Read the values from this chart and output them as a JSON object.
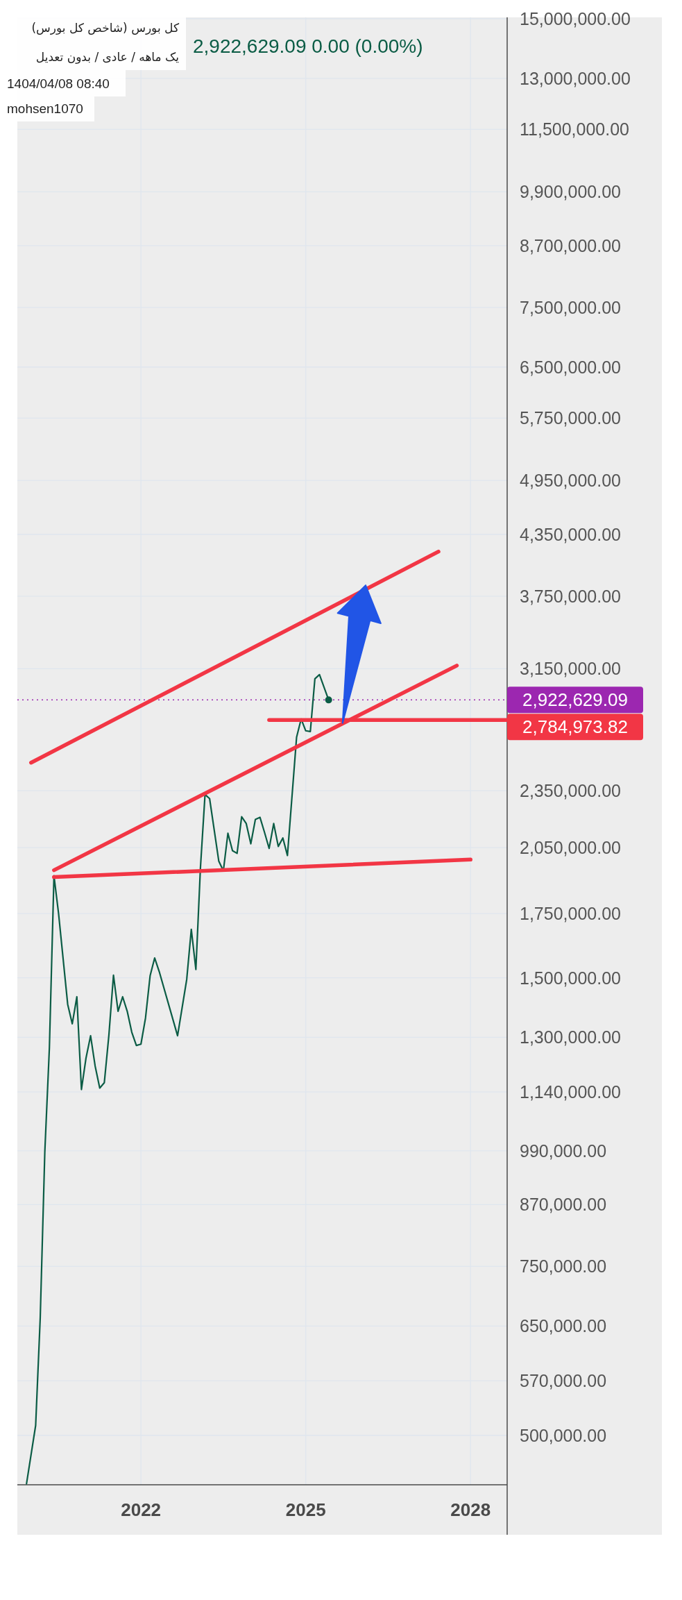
{
  "chart_data": {
    "type": "line",
    "title": "کل بورس (شاخص کل بورس)",
    "subtitle": "یک ماهه / عادی / بدون تعدیل",
    "annotations": [
      "2,922,629.09  0.00 (0.00%)",
      "1404/04/08 08:40",
      "mohsen1070"
    ],
    "log": true,
    "grid": true,
    "xlim": [
      "2019-10",
      "2028-09"
    ],
    "xticks": [
      "2022",
      "2025",
      "2028"
    ],
    "ylim": [
      444000,
      15050000
    ],
    "yticks": [
      {
        "value": 15000000,
        "label": "15,000,000.00"
      },
      {
        "value": 13000000,
        "label": "13,000,000.00"
      },
      {
        "value": 11500000,
        "label": "11,500,000.00"
      },
      {
        "value": 9900000,
        "label": "9,900,000.00"
      },
      {
        "value": 8700000,
        "label": "8,700,000.00"
      },
      {
        "value": 7500000,
        "label": "7,500,000.00"
      },
      {
        "value": 6500000,
        "label": "6,500,000.00"
      },
      {
        "value": 5750000,
        "label": "5,750,000.00"
      },
      {
        "value": 4950000,
        "label": "4,950,000.00"
      },
      {
        "value": 4350000,
        "label": "4,350,000.00"
      },
      {
        "value": 3750000,
        "label": "3,750,000.00"
      },
      {
        "value": 3150000,
        "label": "3,150,000.00"
      },
      {
        "value": 2350000,
        "label": "2,350,000.00"
      },
      {
        "value": 2050000,
        "label": "2,050,000.00"
      },
      {
        "value": 1750000,
        "label": "1,750,000.00"
      },
      {
        "value": 1500000,
        "label": "1,500,000.00"
      },
      {
        "value": 1300000,
        "label": "1,300,000.00"
      },
      {
        "value": 1140000,
        "label": "1,140,000.00"
      },
      {
        "value": 990000,
        "label": "990,000.00"
      },
      {
        "value": 870000,
        "label": "870,000.00"
      },
      {
        "value": 750000,
        "label": "750,000.00"
      },
      {
        "value": 650000,
        "label": "650,000.00"
      },
      {
        "value": 570000,
        "label": "570,000.00"
      },
      {
        "value": 500000,
        "label": "500,000.00"
      }
    ],
    "series": [
      {
        "type": "line",
        "color": "#0b5c45",
        "x": [
          "2019-12",
          "2020-02",
          "2020-03",
          "2020-04",
          "2020-05",
          "2020-06",
          "2020-07",
          "2020-09",
          "2020-10",
          "2020-11",
          "2020-12",
          "2021-01",
          "2021-02",
          "2021-03",
          "2021-04",
          "2021-05",
          "2021-06",
          "2021-07",
          "2021-08",
          "2021-09",
          "2021-10",
          "2021-11",
          "2021-12",
          "2022-01",
          "2022-02",
          "2022-03",
          "2022-04",
          "2022-05",
          "2022-09",
          "2022-11",
          "2022-12",
          "2023-01",
          "2023-02",
          "2023-03",
          "2023-04",
          "2023-06",
          "2023-07",
          "2023-08",
          "2023-09",
          "2023-10",
          "2023-11",
          "2023-12",
          "2024-01",
          "2024-02",
          "2024-03",
          "2024-04",
          "2024-05",
          "2024-06",
          "2024-07",
          "2024-08",
          "2024-09",
          "2024-11",
          "2024-12",
          "2025-01",
          "2025-02",
          "2025-03",
          "2025-04",
          "2025-06"
        ],
        "values": [
          445000,
          512000,
          663000,
          987000,
          1268000,
          1916000,
          1751000,
          1407000,
          1343000,
          1433000,
          1147000,
          1237000,
          1305000,
          1213000,
          1151000,
          1166000,
          1307000,
          1509000,
          1384000,
          1433000,
          1384000,
          1316000,
          1275000,
          1279000,
          1362000,
          1507000,
          1573000,
          1522000,
          1305000,
          1494000,
          1685000,
          1530000,
          1955000,
          2329000,
          2306000,
          1985000,
          1939000,
          2122000,
          2035000,
          2022000,
          2208000,
          2172000,
          2069000,
          2194000,
          2205000,
          2126000,
          2046000,
          2172000,
          2056000,
          2098000,
          2012000,
          2673000,
          2792000,
          2714000,
          2709000,
          3075000,
          3106000,
          2922629.09
        ]
      },
      {
        "type": "line",
        "color": "#f23645",
        "x": [
          "2020-01",
          "2027-06"
        ],
        "values": [
          2514000,
          4173000
        ]
      },
      {
        "type": "line",
        "color": "#f23645",
        "x": [
          "2020-06",
          "2027-10"
        ],
        "values": [
          1942000,
          3174000
        ]
      },
      {
        "type": "line",
        "color": "#f23645",
        "x": [
          "2020-06",
          "2028-01"
        ],
        "values": [
          1910000,
          1992000
        ]
      },
      {
        "type": "line",
        "color": "#f23645",
        "x": [
          "2024-05",
          "2028-09"
        ],
        "values": [
          2784973.82,
          2784973.82
        ],
        "value_labels": [
          null,
          "2,784,973.82"
        ]
      }
    ],
    "ref_lines": [
      {
        "axis": "y",
        "value": 2922629.09,
        "label": "2,922,629.09",
        "color": "#9c27b0",
        "line_style": "dotted"
      }
    ]
  }
}
